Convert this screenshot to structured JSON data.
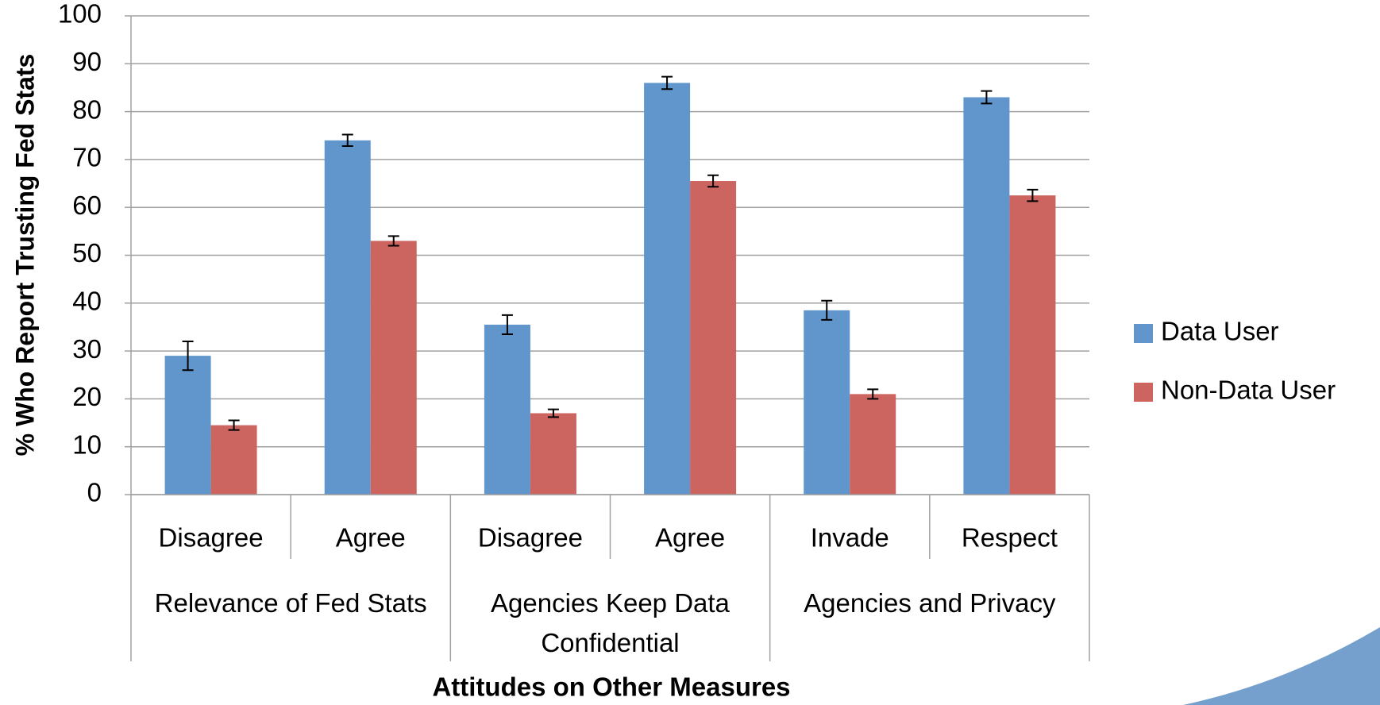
{
  "chart_data": {
    "type": "bar",
    "y_axis_label": "% Who Report Trusting Fed Stats",
    "x_axis_label": "Attitudes on Other Measures",
    "groups": [
      {
        "name": "Relevance of Fed Stats",
        "categories": [
          "Disagree",
          "Agree"
        ]
      },
      {
        "name": "Agencies Keep Data Confidential",
        "categories": [
          "Disagree",
          "Agree"
        ]
      },
      {
        "name": "Agencies and Privacy",
        "categories": [
          "Invade",
          "Respect"
        ]
      }
    ],
    "series": [
      {
        "name": "Data User",
        "color": "#6096cc",
        "values": [
          29,
          74,
          35.5,
          86,
          38.5,
          83
        ],
        "errors": [
          3,
          1.2,
          2,
          1.3,
          2,
          1.3
        ]
      },
      {
        "name": "Non-Data User",
        "color": "#cc6560",
        "values": [
          14.5,
          53,
          17,
          65.5,
          21,
          62.5
        ],
        "errors": [
          1,
          1,
          0.8,
          1.2,
          1,
          1.2
        ]
      }
    ],
    "ylim": [
      0,
      100
    ],
    "yticks": [
      0,
      10,
      20,
      30,
      40,
      50,
      60,
      70,
      80,
      90,
      100
    ],
    "grid": true,
    "legend": "right"
  }
}
